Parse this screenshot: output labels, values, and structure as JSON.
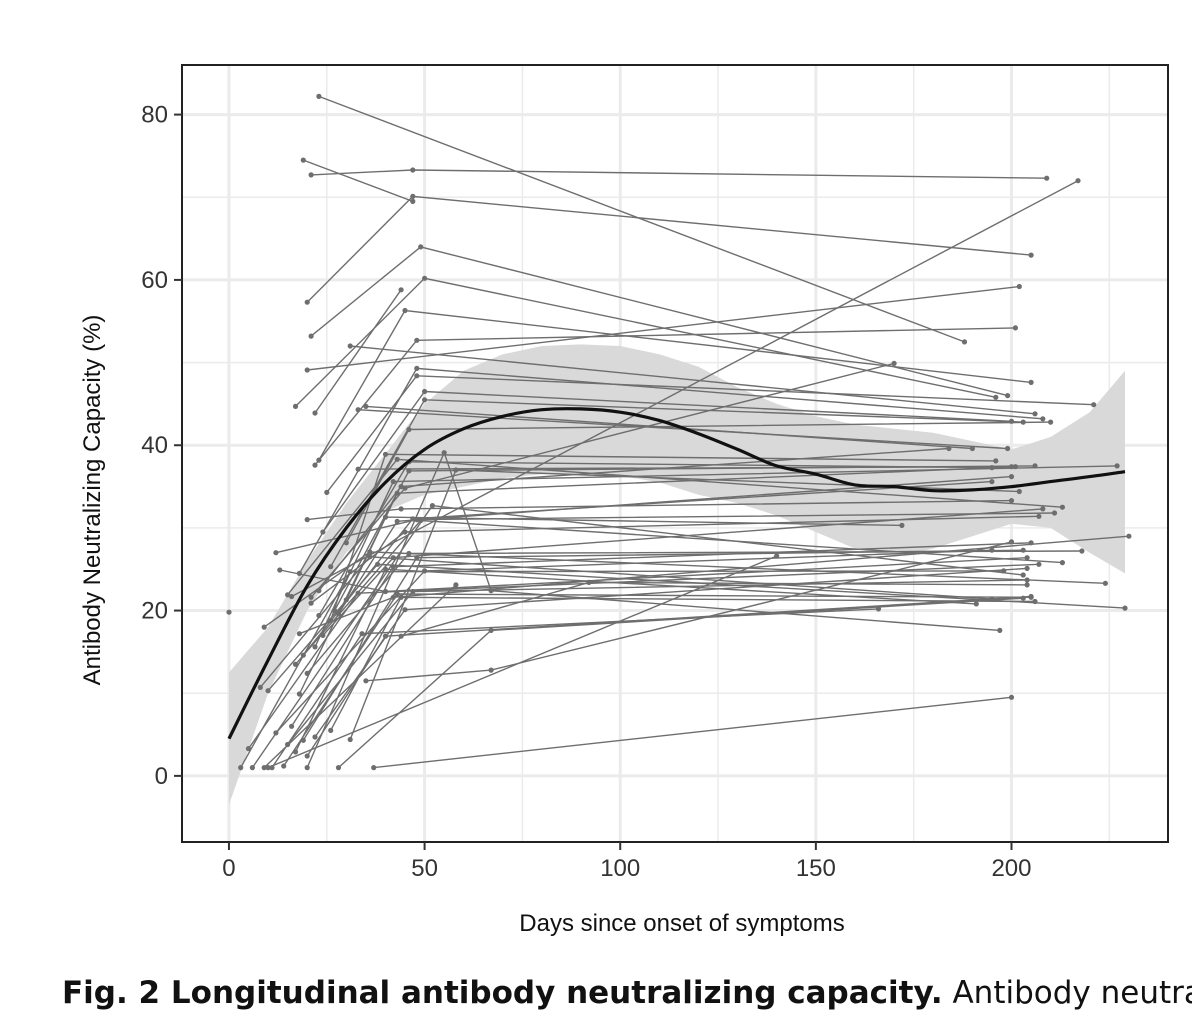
{
  "caption": {
    "bold": "Fig. 2 Longitudinal antibody neutralizing capacity.",
    "text": " Antibody neutralizing"
  },
  "chart_data": {
    "type": "line",
    "title": "",
    "xlabel": "Days since onset of symptoms",
    "ylabel": "Antibody Neutralizing Capacity (%)",
    "xlim": [
      -12,
      240
    ],
    "ylim": [
      -8,
      86
    ],
    "xticks": [
      0,
      50,
      100,
      150,
      200
    ],
    "yticks": [
      0,
      20,
      40,
      60,
      80
    ],
    "grid": true,
    "colors": {
      "subject": "#6e6e6e",
      "smooth": "#111111",
      "ribbon": "#d9d9d9",
      "grid": "#ebebeb"
    },
    "trend": {
      "name": "",
      "x": [
        0,
        10,
        20,
        30,
        40,
        50,
        60,
        70,
        80,
        90,
        100,
        110,
        120,
        130,
        140,
        150,
        160,
        170,
        180,
        190,
        200,
        210,
        220,
        229
      ],
      "y": [
        4.5,
        14,
        23,
        30,
        35.5,
        39.5,
        42,
        43.5,
        44.3,
        44.4,
        44,
        43,
        41.4,
        39.5,
        37.5,
        36.5,
        35.2,
        35,
        34.5,
        34.6,
        35,
        35.6,
        36.2,
        36.8
      ],
      "lower": [
        -3.5,
        10,
        20,
        27,
        32,
        34,
        35,
        36,
        36.5,
        36.6,
        36.3,
        35.5,
        34,
        33,
        31.5,
        29.5,
        27.5,
        26.5,
        27.5,
        29,
        30.5,
        30,
        27,
        24.5
      ],
      "upper": [
        12.5,
        18,
        26,
        33,
        39,
        45,
        49,
        51,
        52,
        52.2,
        52,
        51,
        49.5,
        47,
        45,
        43.5,
        42.5,
        42,
        41.5,
        40.5,
        39.5,
        41,
        44,
        49
      ]
    },
    "subjects": [
      [
        [
          0,
          19.8
        ]
      ],
      [
        [
          23,
          82.2
        ],
        [
          188,
          52.5
        ]
      ],
      [
        [
          19,
          74.5
        ],
        [
          47,
          69.5
        ]
      ],
      [
        [
          21,
          72.7
        ],
        [
          47,
          73.3
        ],
        [
          209,
          72.3
        ]
      ],
      [
        [
          20,
          57.3
        ],
        [
          47,
          70.1
        ],
        [
          205,
          63
        ]
      ],
      [
        [
          21,
          53.2
        ],
        [
          49,
          64
        ],
        [
          199,
          46
        ]
      ],
      [
        [
          17,
          44.7
        ],
        [
          50,
          60.2
        ],
        [
          196,
          45.8
        ]
      ],
      [
        [
          16,
          21.7
        ],
        [
          217,
          72
        ]
      ],
      [
        [
          20,
          49.1
        ],
        [
          202,
          59.2
        ]
      ],
      [
        [
          22,
          43.9
        ],
        [
          44,
          58.8
        ]
      ],
      [
        [
          22,
          37.6
        ],
        [
          48,
          52.7
        ],
        [
          201,
          54.2
        ]
      ],
      [
        [
          23,
          38.2
        ],
        [
          45,
          56.3
        ],
        [
          205,
          47.6
        ]
      ],
      [
        [
          31,
          52
        ],
        [
          206,
          43.8
        ]
      ],
      [
        [
          18,
          24.5
        ],
        [
          48,
          49.3
        ],
        [
          208,
          43.2
        ]
      ],
      [
        [
          25,
          34.3
        ],
        [
          48,
          48.4
        ],
        [
          221,
          44.9
        ]
      ],
      [
        [
          24,
          29.5
        ],
        [
          50,
          46.5
        ],
        [
          200,
          42.9
        ]
      ],
      [
        [
          26,
          25.3
        ],
        [
          50,
          45.5
        ],
        [
          203,
          42.8
        ]
      ],
      [
        [
          30,
          28.2
        ],
        [
          46,
          41.9
        ],
        [
          210,
          42.8
        ]
      ],
      [
        [
          33,
          44.3
        ],
        [
          199,
          39.6
        ]
      ],
      [
        [
          27,
          20
        ],
        [
          46,
          36.9
        ],
        [
          206,
          37.5
        ]
      ],
      [
        [
          35,
          44.7
        ],
        [
          190,
          39.6
        ]
      ],
      [
        [
          21,
          21.6
        ],
        [
          45,
          34.8
        ],
        [
          170,
          49.9
        ]
      ],
      [
        [
          26,
          18.8
        ],
        [
          40,
          38.9
        ],
        [
          196,
          38.1
        ]
      ],
      [
        [
          33,
          37.1
        ],
        [
          200,
          37.4
        ]
      ],
      [
        [
          30,
          21.3
        ],
        [
          43,
          34.2
        ],
        [
          201,
          37.4
        ]
      ],
      [
        [
          23,
          19.4
        ],
        [
          46,
          38
        ],
        [
          195,
          37.3
        ]
      ],
      [
        [
          15,
          21.9
        ],
        [
          43,
          38.3
        ],
        [
          213,
          32.5
        ]
      ],
      [
        [
          20,
          31
        ],
        [
          44,
          32.3
        ],
        [
          200,
          33.3
        ]
      ],
      [
        [
          12,
          27
        ],
        [
          48,
          31
        ],
        [
          211,
          31.8
        ]
      ],
      [
        [
          22,
          15.6
        ],
        [
          42,
          35.6
        ],
        [
          227,
          37.5
        ]
      ],
      [
        [
          23,
          22.4
        ],
        [
          44,
          35
        ],
        [
          184,
          39.6
        ]
      ],
      [
        [
          28,
          19.6
        ],
        [
          43,
          30.8
        ],
        [
          200,
          36.2
        ]
      ],
      [
        [
          21,
          20.9
        ],
        [
          45,
          29.5
        ],
        [
          207,
          31.4
        ]
      ],
      [
        [
          19,
          14.6
        ],
        [
          47,
          31.1
        ],
        [
          195,
          35.6
        ]
      ],
      [
        [
          18,
          9.9
        ],
        [
          40,
          31.3
        ],
        [
          172,
          30.3
        ]
      ],
      [
        [
          24,
          17
        ],
        [
          42,
          26.4
        ],
        [
          208,
          32.3
        ]
      ],
      [
        [
          17,
          13.5
        ],
        [
          49,
          30.9
        ],
        [
          213,
          25.8
        ]
      ],
      [
        [
          16,
          6
        ],
        [
          42,
          25.3
        ],
        [
          205,
          28.2
        ]
      ],
      [
        [
          20,
          12.4
        ],
        [
          46,
          26.9
        ],
        [
          218,
          27.2
        ]
      ],
      [
        [
          13,
          24.9
        ],
        [
          40,
          22.3
        ],
        [
          204,
          26.4
        ]
      ],
      [
        [
          18,
          17.2
        ],
        [
          42,
          21.6
        ],
        [
          230,
          29
        ]
      ],
      [
        [
          19,
          4.3
        ],
        [
          48,
          26.4
        ],
        [
          203,
          27.3
        ]
      ],
      [
        [
          20,
          2.4
        ],
        [
          40,
          16.9
        ],
        [
          205,
          21.7
        ]
      ],
      [
        [
          9,
          18
        ],
        [
          36,
          27.1
        ],
        [
          224,
          23.3
        ]
      ],
      [
        [
          26,
          5.5
        ],
        [
          44,
          21.6
        ],
        [
          206,
          21.1
        ]
      ],
      [
        [
          10,
          10.3
        ],
        [
          38,
          25.6
        ],
        [
          229,
          20.3
        ]
      ],
      [
        [
          15,
          3.8
        ],
        [
          47,
          22.3
        ],
        [
          204,
          23.7
        ]
      ],
      [
        [
          8,
          10.7
        ],
        [
          36,
          26.5
        ],
        [
          195,
          21.4
        ]
      ],
      [
        [
          17,
          2.9
        ],
        [
          40,
          25
        ],
        [
          191,
          20.8
        ]
      ],
      [
        [
          22,
          4.7
        ],
        [
          45,
          20.1
        ],
        [
          204,
          25.1
        ]
      ],
      [
        [
          14,
          1.2
        ],
        [
          43,
          22
        ],
        [
          205,
          21.6
        ]
      ],
      [
        [
          5,
          3.3
        ],
        [
          33,
          22.1
        ],
        [
          207,
          25.6
        ]
      ],
      [
        [
          3,
          1
        ],
        [
          31,
          24.7
        ],
        [
          198,
          24.8
        ]
      ],
      [
        [
          11,
          1
        ],
        [
          34,
          17.2
        ],
        [
          166,
          20.2
        ]
      ],
      [
        [
          6,
          1
        ],
        [
          52,
          32.7
        ],
        [
          203,
          24.3
        ]
      ],
      [
        [
          9,
          1
        ],
        [
          58,
          23.1
        ]
      ],
      [
        [
          12,
          5.2
        ],
        [
          50,
          24.8
        ],
        [
          195,
          27.3
        ]
      ],
      [
        [
          20,
          1
        ],
        [
          55,
          39.1
        ],
        [
          67,
          22.4
        ],
        [
          197,
          17.6
        ]
      ],
      [
        [
          31,
          4.4
        ],
        [
          58,
          37
        ],
        [
          202,
          34.4
        ]
      ],
      [
        [
          35,
          11.5
        ],
        [
          67,
          12.8
        ],
        [
          200,
          28.3
        ]
      ],
      [
        [
          28,
          1
        ],
        [
          67,
          17.6
        ],
        [
          203,
          21.5
        ]
      ],
      [
        [
          37,
          1
        ],
        [
          200,
          9.5
        ]
      ],
      [
        [
          44,
          16.9
        ],
        [
          92,
          23.4
        ],
        [
          204,
          23.1
        ]
      ],
      [
        [
          10,
          1
        ],
        [
          140,
          26.6
        ]
      ]
    ]
  }
}
